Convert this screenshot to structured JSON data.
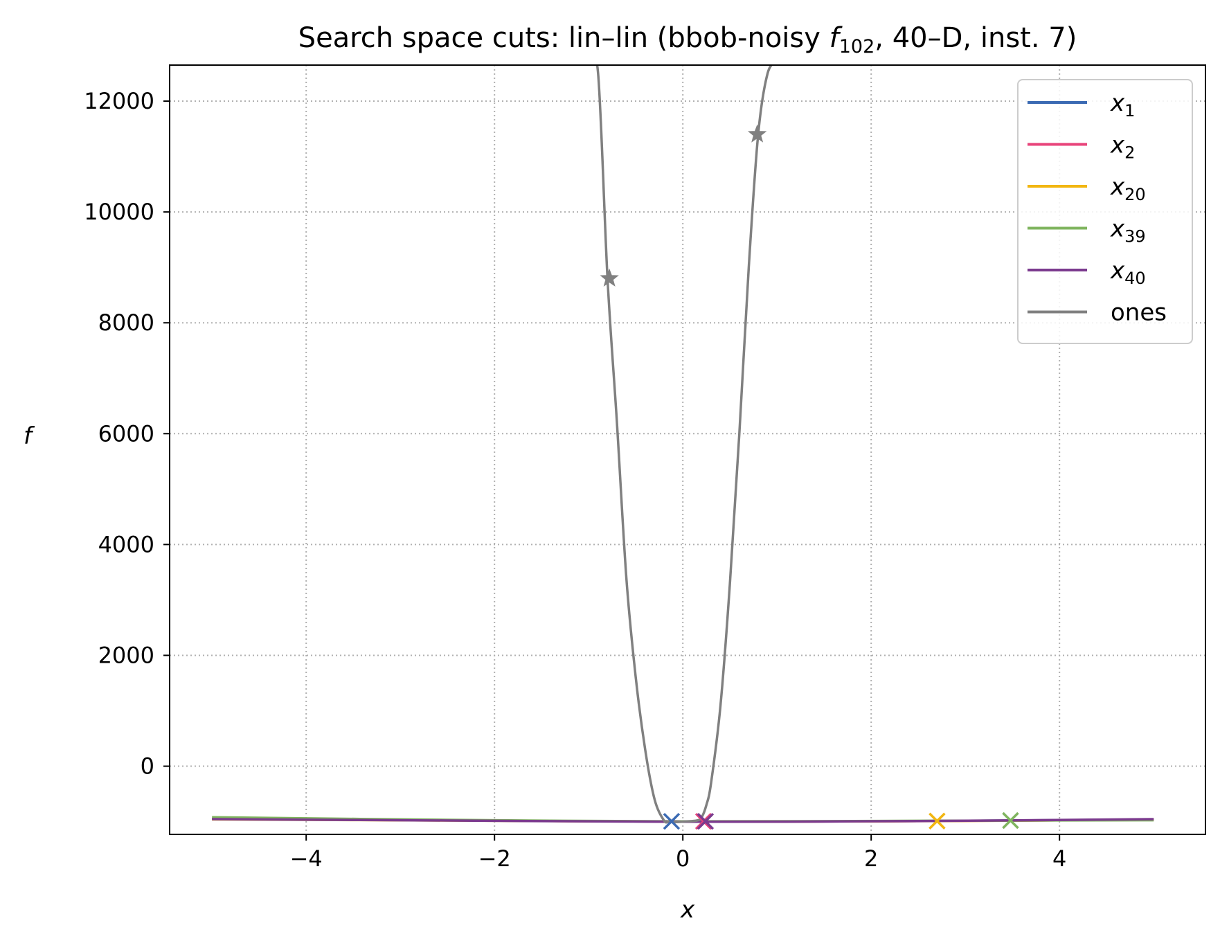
{
  "chart_data": {
    "type": "line",
    "title": {
      "prefix": "Search space cuts: lin–lin (bbob-noisy ",
      "func_symbol": "f",
      "func_subscript": "102",
      "suffix": ", 40–D, inst. 7)"
    },
    "xlabel": "x",
    "ylabel": "f",
    "xlim": [
      -5.45,
      5.55
    ],
    "ylim": [
      -1230,
      12650
    ],
    "xticks": [
      {
        "value": -4,
        "label": "−4"
      },
      {
        "value": -2,
        "label": "−2"
      },
      {
        "value": 0,
        "label": "0"
      },
      {
        "value": 2,
        "label": "2"
      },
      {
        "value": 4,
        "label": "4"
      }
    ],
    "yticks": [
      {
        "value": 0,
        "label": "0"
      },
      {
        "value": 2000,
        "label": "2000"
      },
      {
        "value": 4000,
        "label": "4000"
      },
      {
        "value": 6000,
        "label": "6000"
      },
      {
        "value": 8000,
        "label": "8000"
      },
      {
        "value": 10000,
        "label": "10000"
      },
      {
        "value": 12000,
        "label": "12000"
      }
    ],
    "grid": true,
    "legend_position": "top-right",
    "series": [
      {
        "name": "x1",
        "label_base": "x",
        "label_sub": "1",
        "color": "#3b6ab3",
        "x": [
          -5,
          -2.5,
          0,
          2.5,
          5
        ],
        "y": [
          -950,
          -975,
          -1000,
          -990,
          -960
        ],
        "marker": "x",
        "marker_x": -0.12,
        "marker_y": -995
      },
      {
        "name": "x2",
        "label_base": "x",
        "label_sub": "2",
        "color": "#e8437a",
        "x": [
          -5,
          -2.5,
          0,
          2.5,
          5
        ],
        "y": [
          -955,
          -978,
          -1000,
          -992,
          -965
        ],
        "marker": "x",
        "marker_x": 0.22,
        "marker_y": -995
      },
      {
        "name": "x20",
        "label_base": "x",
        "label_sub": "20",
        "color": "#f2b611",
        "x": [
          -5,
          -2.5,
          0,
          2.5,
          5
        ],
        "y": [
          -960,
          -980,
          -998,
          -990,
          -968
        ],
        "marker": "x",
        "marker_x": 2.7,
        "marker_y": -990
      },
      {
        "name": "x39",
        "label_base": "x",
        "label_sub": "39",
        "color": "#7fb45e",
        "x": [
          -5,
          -2.5,
          0,
          2.5,
          5
        ],
        "y": [
          -920,
          -968,
          -995,
          -985,
          -975
        ],
        "marker": "x",
        "marker_x": 3.48,
        "marker_y": -980
      },
      {
        "name": "x40",
        "label_base": "x",
        "label_sub": "40",
        "color": "#7b3a8e",
        "x": [
          -5,
          -2.5,
          0,
          2.5,
          5
        ],
        "y": [
          -955,
          -980,
          -1002,
          -990,
          -955
        ],
        "marker": "x",
        "marker_x": 0.24,
        "marker_y": -995
      },
      {
        "name": "ones",
        "label_base": "ones",
        "label_sub": "",
        "color": "#808080",
        "x": [
          -1.0,
          -0.9,
          -0.8,
          -0.7,
          -0.6,
          -0.5,
          -0.4,
          -0.3,
          -0.2,
          -0.15,
          -0.1,
          0,
          0.15,
          0.2,
          0.25,
          0.3,
          0.4,
          0.5,
          0.6,
          0.7,
          0.8,
          0.9,
          1.0
        ],
        "y": [
          12700,
          12500,
          8800,
          6200,
          3400,
          1600,
          300,
          -600,
          -980,
          -1000,
          -1010,
          -1000,
          -980,
          -920,
          -700,
          -300,
          1100,
          3300,
          6000,
          9000,
          11400,
          12500,
          12700
        ],
        "markers": [
          {
            "x": -0.78,
            "y": 8800,
            "type": "star"
          },
          {
            "x": 0.79,
            "y": 11400,
            "type": "star"
          }
        ]
      }
    ]
  }
}
